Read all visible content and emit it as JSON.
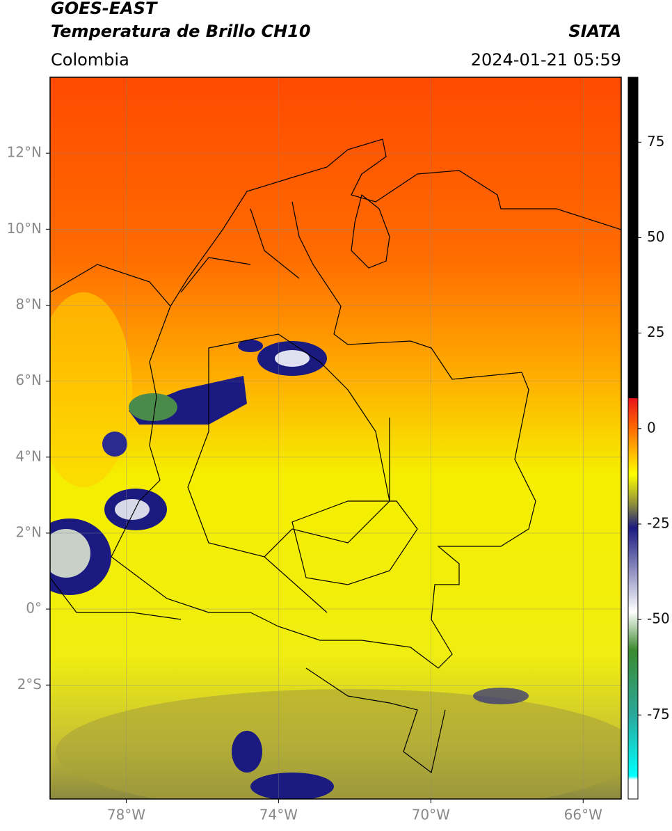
{
  "header": {
    "title": "GOES-EAST",
    "subtitle": "Temperatura de Brillo CH10",
    "region": "Colombia",
    "agency": "SIATA",
    "datetime": "2024-01-21 05:59"
  },
  "map": {
    "xlim": [
      -80,
      -65
    ],
    "ylim": [
      -5,
      14
    ],
    "xticks": [
      {
        "value": -78,
        "label": "78°W"
      },
      {
        "value": -74,
        "label": "74°W"
      },
      {
        "value": -70,
        "label": "70°W"
      },
      {
        "value": -66,
        "label": "66°W"
      }
    ],
    "yticks": [
      {
        "value": 12,
        "label": "12°N"
      },
      {
        "value": 10,
        "label": "10°N"
      },
      {
        "value": 8,
        "label": "8°N"
      },
      {
        "value": 6,
        "label": "6°N"
      },
      {
        "value": 4,
        "label": "4°N"
      },
      {
        "value": 2,
        "label": "2°N"
      },
      {
        "value": 0,
        "label": "0°"
      },
      {
        "value": -2,
        "label": "2°S"
      }
    ],
    "grid": true
  },
  "colorbar": {
    "lim": [
      -97,
      92
    ],
    "ticks": [
      75,
      50,
      25,
      0,
      -25,
      -50,
      -75
    ],
    "colorscale": [
      {
        "value": 92,
        "color": "#000000"
      },
      {
        "value": 8,
        "color": "#000000"
      },
      {
        "value": 7.9,
        "color": "#e8141a"
      },
      {
        "value": 0,
        "color": "#ff6a00"
      },
      {
        "value": -12,
        "color": "#ffff00"
      },
      {
        "value": -20,
        "color": "#8a8a3c"
      },
      {
        "value": -26,
        "color": "#1a1a80"
      },
      {
        "value": -48,
        "color": "#ffffff"
      },
      {
        "value": -58,
        "color": "#3b8a2e"
      },
      {
        "value": -75,
        "color": "#2aa89a"
      },
      {
        "value": -91,
        "color": "#00ffff"
      },
      {
        "value": -92,
        "color": "#ffffff"
      },
      {
        "value": -97,
        "color": "#ffffff"
      }
    ]
  }
}
